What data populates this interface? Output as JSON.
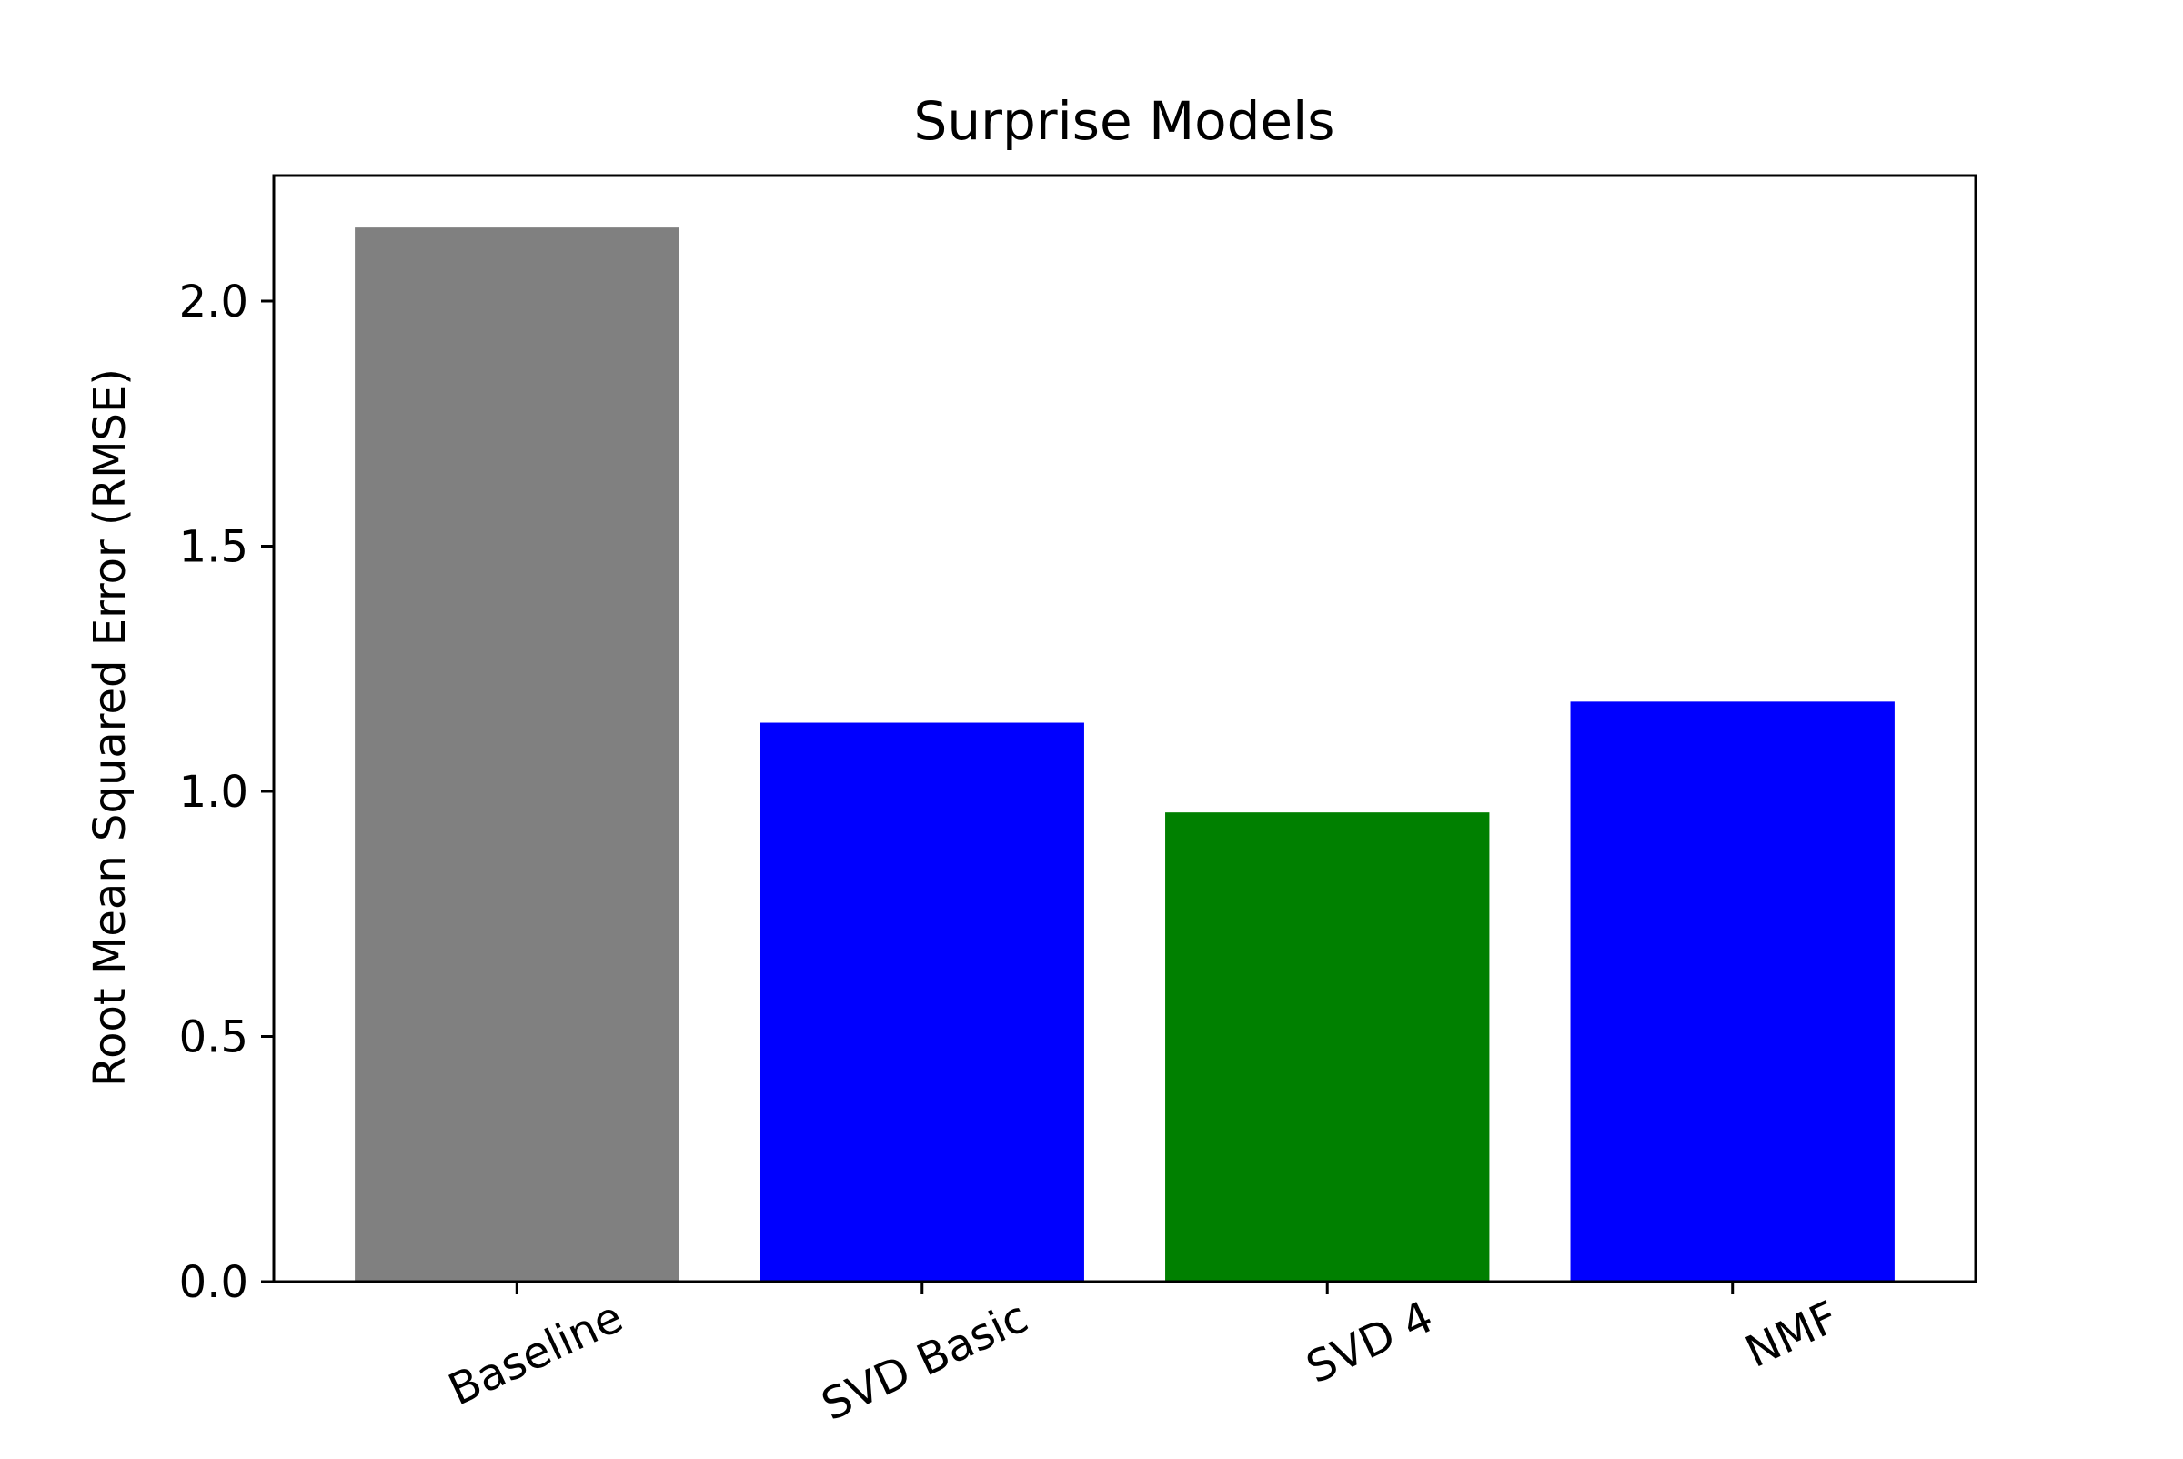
{
  "chart_data": {
    "type": "bar",
    "title": "Surprise Models",
    "xlabel": "",
    "ylabel": "Root Mean Squared Error (RMSE)",
    "categories": [
      "Baseline",
      "SVD Basic",
      "SVD 4",
      "NMF"
    ],
    "values": [
      2.15,
      1.14,
      0.957,
      1.183
    ],
    "bar_colors": [
      "#808080",
      "#0000ff",
      "#008000",
      "#0000ff"
    ],
    "ylim": [
      0,
      2.256
    ],
    "yticks": [
      0.0,
      0.5,
      1.0,
      1.5,
      2.0
    ],
    "ytick_labels": [
      "0.0",
      "0.5",
      "1.0",
      "1.5",
      "2.0"
    ],
    "grid": false,
    "legend": "none"
  }
}
